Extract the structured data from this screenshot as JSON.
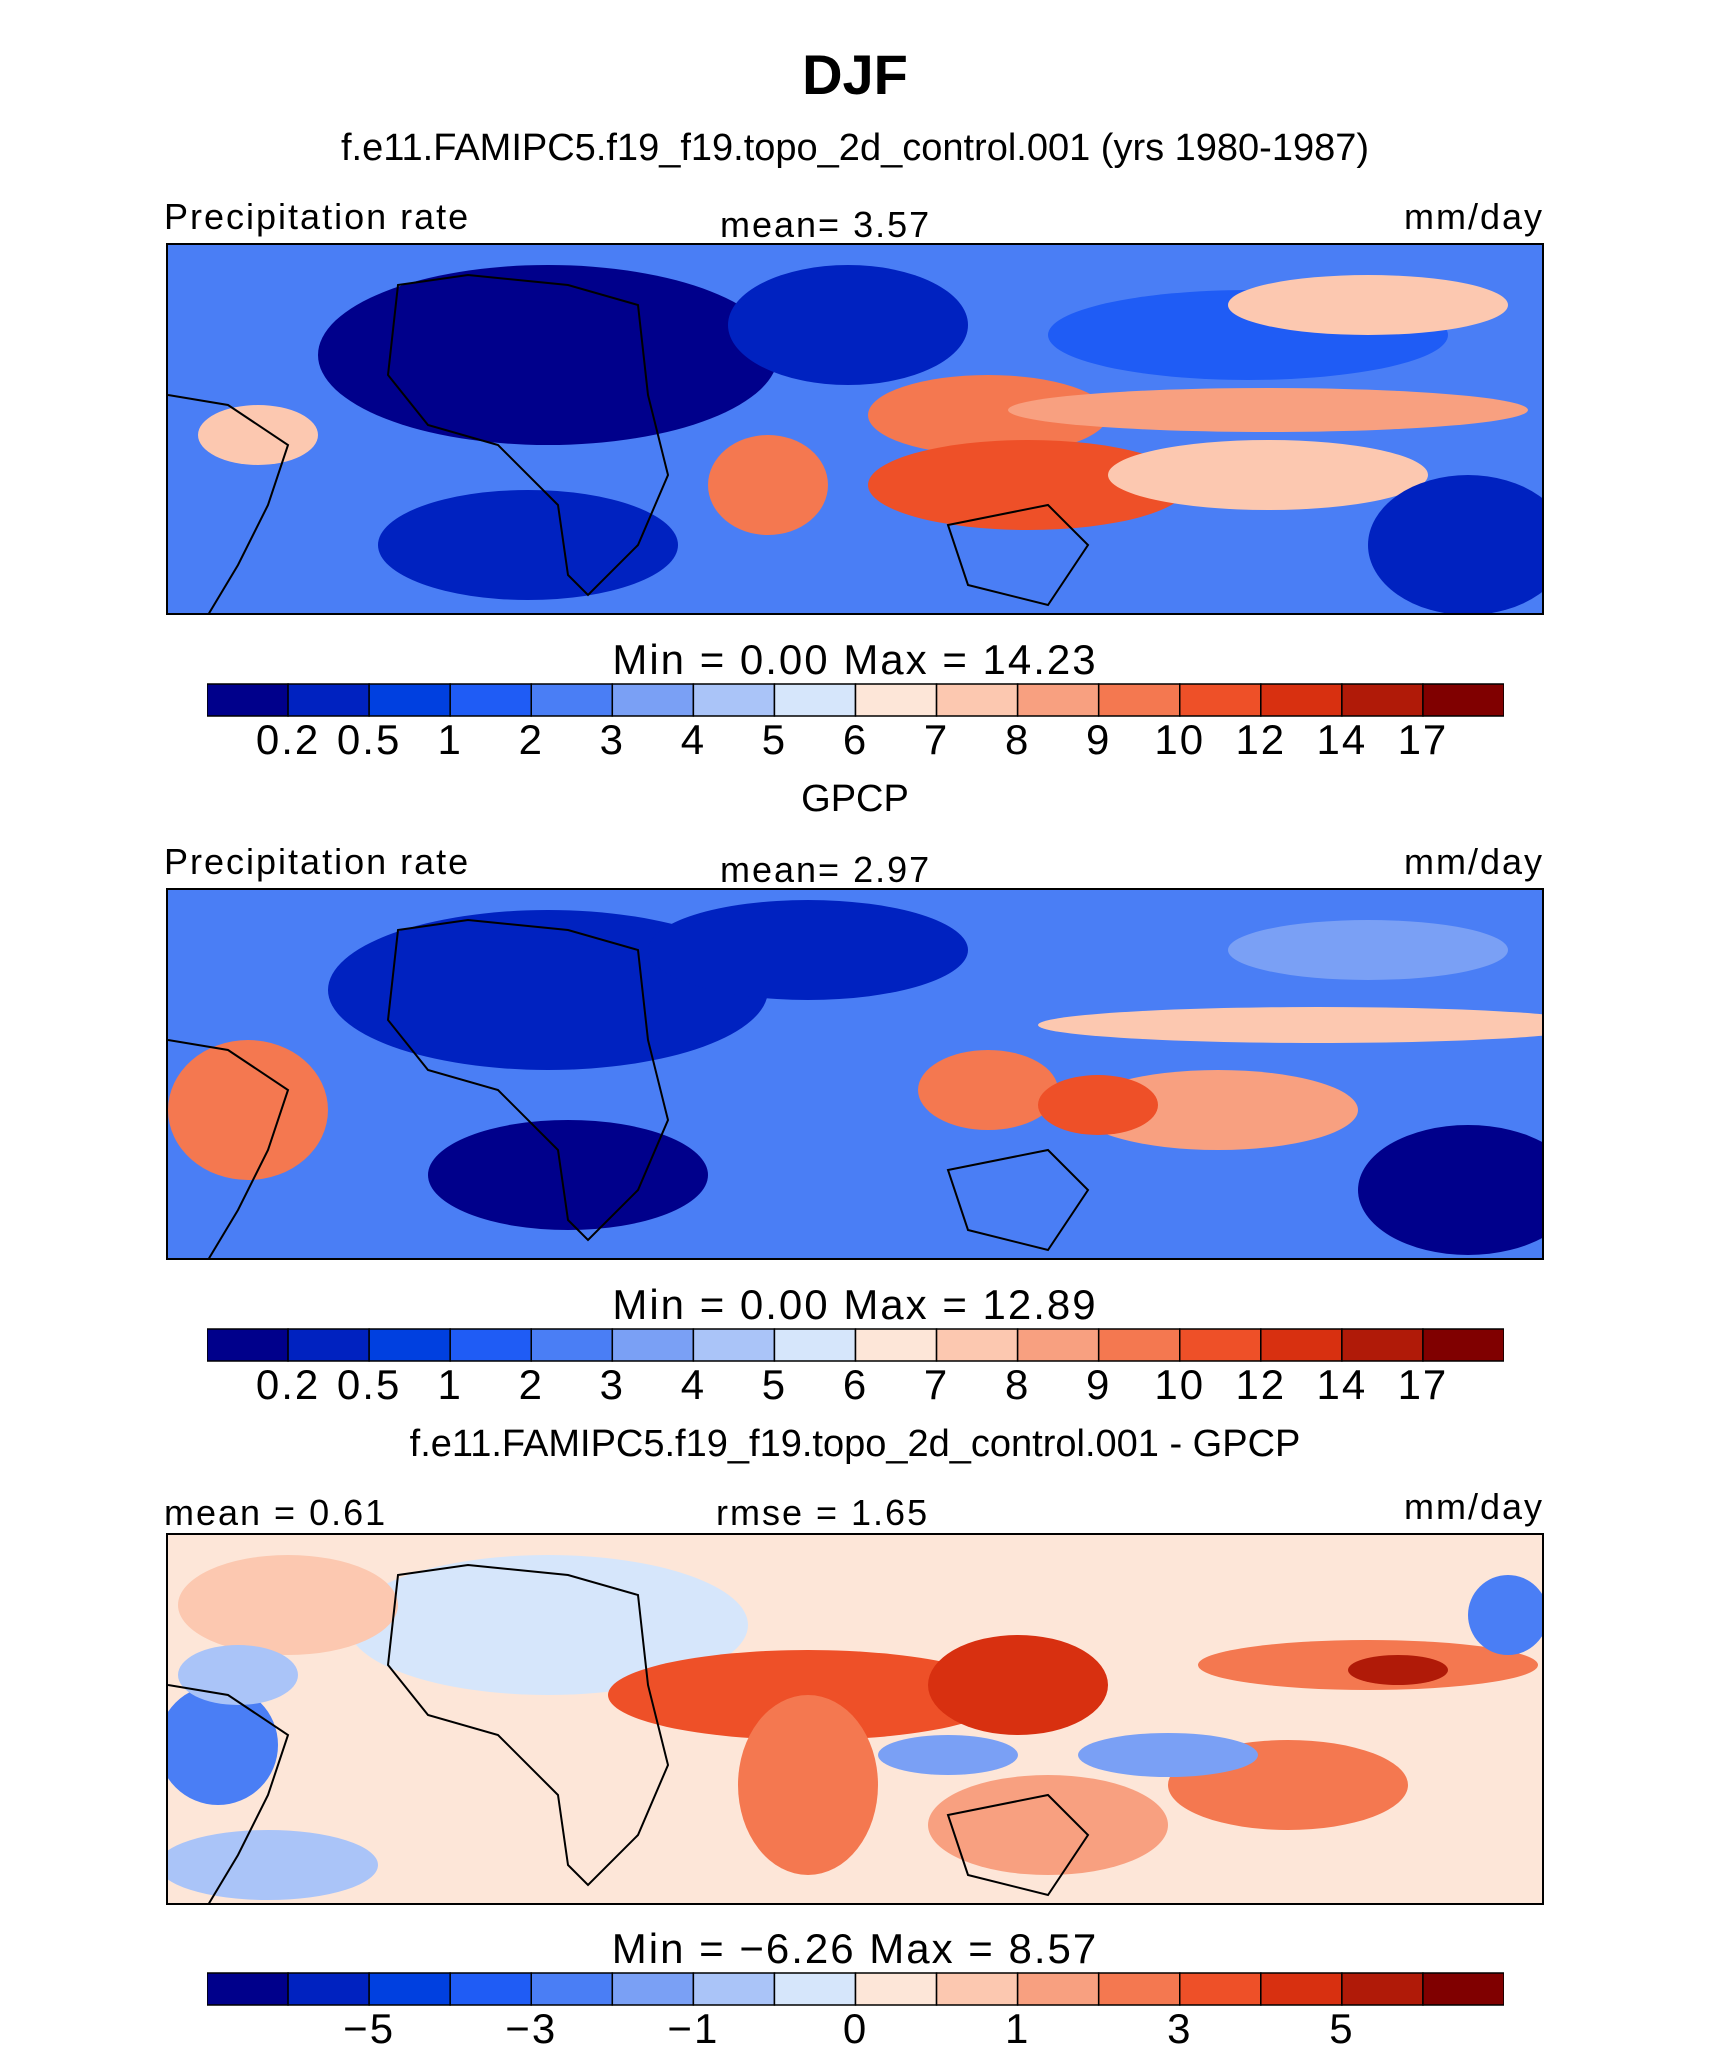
{
  "title": "DJF",
  "colors": {
    "abs_scale": [
      "#00008b",
      "#0022c0",
      "#0040e0",
      "#1f5cf5",
      "#4a7ef5",
      "#7aa0f5",
      "#aac4f8",
      "#d6e6fb",
      "#fde6d8",
      "#fcc8b0",
      "#f8a080",
      "#f47850",
      "#ee5028",
      "#d83010",
      "#b01a08",
      "#800000"
    ],
    "diff_scale": [
      "#00008b",
      "#0022c0",
      "#0040e0",
      "#1f5cf5",
      "#4a7ef5",
      "#7aa0f5",
      "#aac4f8",
      "#d6e6fb",
      "#fde6d8",
      "#fcc8b0",
      "#f8a080",
      "#f47850",
      "#ee5028",
      "#d83010",
      "#b01a08",
      "#800000"
    ]
  },
  "panels": [
    {
      "title": "f.e11.FAMIPC5.f19_f19.topo_2d_control.001 (yrs 1980-1987)",
      "left_label": "Precipitation rate",
      "center_label": "mean=    3.57",
      "units": "mm/day",
      "min_max": "Min  =    0.00  Max  =   14.23",
      "ticks": [
        "0.2",
        "0.5",
        "1",
        "2",
        "3",
        "4",
        "5",
        "6",
        "7",
        "8",
        "9",
        "10",
        "12",
        "14",
        "17"
      ]
    },
    {
      "title": "GPCP",
      "left_label": "Precipitation rate",
      "center_label": "mean=    2.97",
      "units": "mm/day",
      "min_max": "Min  =    0.00  Max  =   12.89",
      "ticks": [
        "0.2",
        "0.5",
        "1",
        "2",
        "3",
        "4",
        "5",
        "6",
        "7",
        "8",
        "9",
        "10",
        "12",
        "14",
        "17"
      ]
    },
    {
      "title": "f.e11.FAMIPC5.f19_f19.topo_2d_control.001 - GPCP",
      "left_label": "mean  =    0.61",
      "center_label": "rmse  =    1.65",
      "units": "mm/day",
      "min_max": "Min  =  −6.26  Max  =    8.57",
      "ticks": [
        "−5",
        "−3",
        "−1",
        "0",
        "1",
        "3",
        "5"
      ]
    }
  ],
  "chart_data": [
    {
      "type": "heatmap",
      "title": "f.e11.FAMIPC5.f19_f19.topo_2d_control.001 (yrs 1980-1987)",
      "variable": "Precipitation rate",
      "units": "mm/day",
      "mean": 3.57,
      "min": 0.0,
      "max": 14.23,
      "contour_levels": [
        0.2,
        0.5,
        1,
        2,
        3,
        4,
        5,
        6,
        7,
        8,
        9,
        10,
        12,
        14,
        17
      ]
    },
    {
      "type": "heatmap",
      "title": "GPCP",
      "variable": "Precipitation rate",
      "units": "mm/day",
      "mean": 2.97,
      "min": 0.0,
      "max": 12.89,
      "contour_levels": [
        0.2,
        0.5,
        1,
        2,
        3,
        4,
        5,
        6,
        7,
        8,
        9,
        10,
        12,
        14,
        17
      ]
    },
    {
      "type": "heatmap",
      "title": "f.e11.FAMIPC5.f19_f19.topo_2d_control.001 - GPCP",
      "units": "mm/day",
      "mean": 0.61,
      "rmse": 1.65,
      "min": -6.26,
      "max": 8.57,
      "contour_levels": [
        -5,
        -3,
        -1,
        0,
        1,
        3,
        5
      ]
    }
  ]
}
